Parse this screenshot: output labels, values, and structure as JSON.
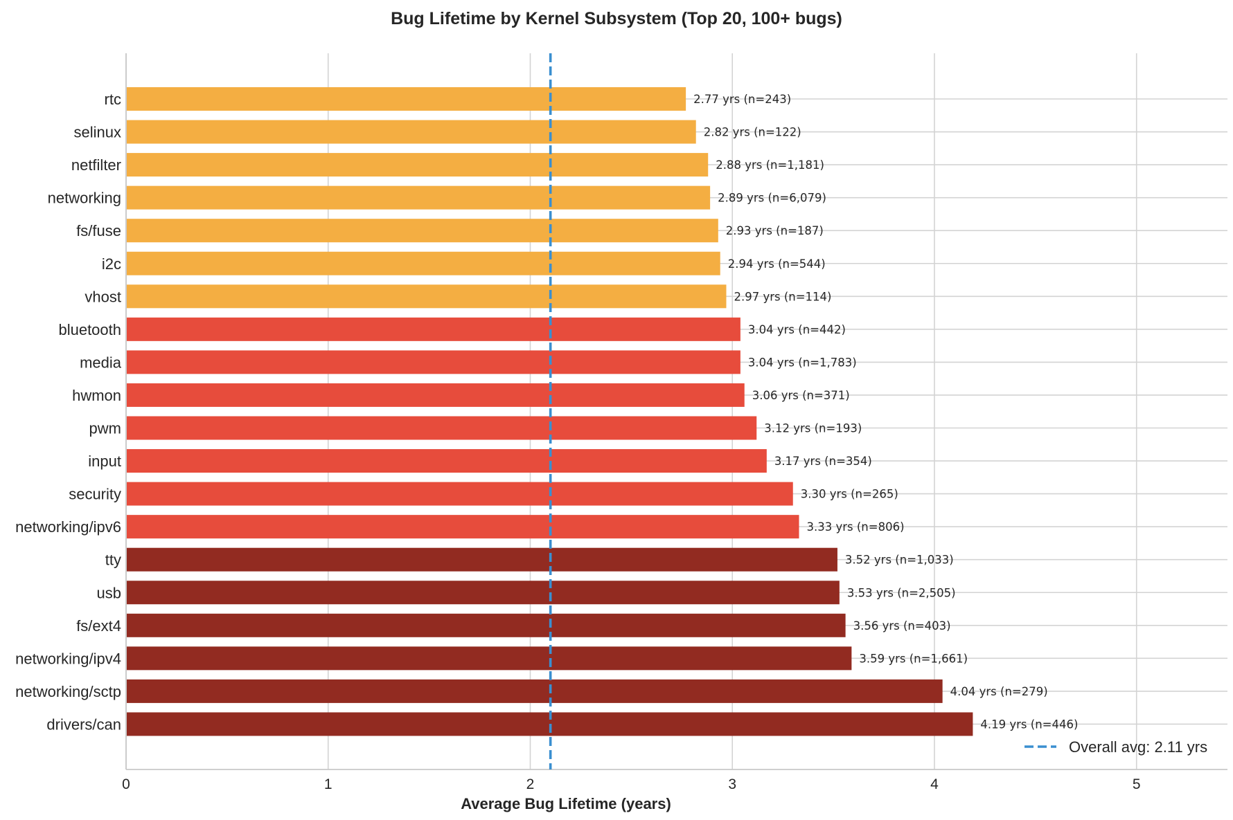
{
  "chart_data": {
    "type": "bar",
    "orientation": "horizontal",
    "title": "Bug Lifetime by Kernel Subsystem (Top 20, 100+ bugs)",
    "xlabel": "Average Bug Lifetime (years)",
    "ylabel": "",
    "xlim": [
      0,
      5.45
    ],
    "xticks": [
      "0",
      "1",
      "2",
      "3",
      "4",
      "5"
    ],
    "grid": true,
    "categories": [
      "rtc",
      "selinux",
      "netfilter",
      "networking",
      "fs/fuse",
      "i2c",
      "vhost",
      "bluetooth",
      "media",
      "hwmon",
      "pwm",
      "input",
      "security",
      "networking/ipv6",
      "tty",
      "usb",
      "fs/ext4",
      "networking/ipv4",
      "networking/sctp",
      "drivers/can"
    ],
    "values": [
      2.77,
      2.82,
      2.88,
      2.89,
      2.93,
      2.94,
      2.97,
      3.04,
      3.04,
      3.06,
      3.12,
      3.17,
      3.3,
      3.33,
      3.52,
      3.53,
      3.56,
      3.59,
      4.04,
      4.19
    ],
    "data_labels": [
      "2.77 yrs (n=243)",
      "2.82 yrs (n=122)",
      "2.88 yrs (n=1,181)",
      "2.89 yrs (n=6,079)",
      "2.93 yrs (n=187)",
      "2.94 yrs (n=544)",
      "2.97 yrs (n=114)",
      "3.04 yrs (n=442)",
      "3.04 yrs (n=1,783)",
      "3.06 yrs (n=371)",
      "3.12 yrs (n=193)",
      "3.17 yrs (n=354)",
      "3.30 yrs (n=265)",
      "3.33 yrs (n=806)",
      "3.52 yrs (n=1,033)",
      "3.53 yrs (n=2,505)",
      "3.56 yrs (n=403)",
      "3.59 yrs (n=1,661)",
      "4.04 yrs (n=279)",
      "4.19 yrs (n=446)"
    ],
    "bar_colors": [
      "#f4ae42",
      "#f4ae42",
      "#f4ae42",
      "#f4ae42",
      "#f4ae42",
      "#f4ae42",
      "#f4ae42",
      "#e74c3c",
      "#e74c3c",
      "#e74c3c",
      "#e74c3c",
      "#e74c3c",
      "#e74c3c",
      "#e74c3c",
      "#922b21",
      "#922b21",
      "#922b21",
      "#922b21",
      "#922b21",
      "#922b21"
    ],
    "reference_line": {
      "value": 2.1,
      "label": "Overall avg: 2.11 yrs",
      "color": "#3a8fd0",
      "style": "dashed"
    },
    "legend_position": "bottom-right"
  }
}
